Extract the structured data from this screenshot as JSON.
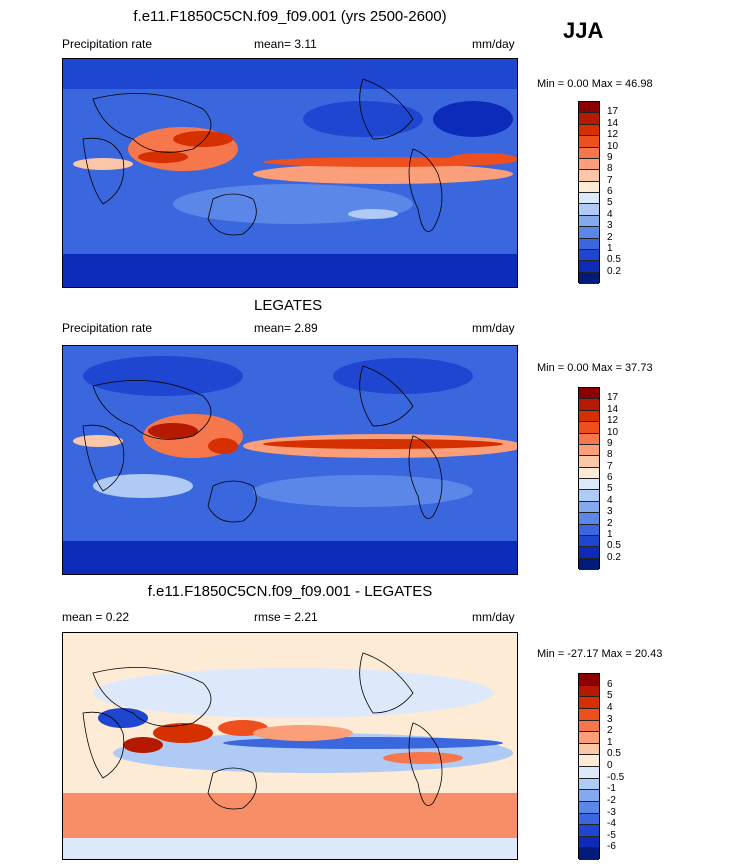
{
  "season": "JJA",
  "panels": [
    {
      "title": "f.e11.F1850C5CN.f09_f09.001 (yrs 2500-2600)",
      "left_label": "Precipitation rate",
      "center_label": "mean=   3.11",
      "units": "mm/day",
      "minmax": "Min =   0.00 Max =  46.98",
      "levels": [
        "17",
        "14",
        "12",
        "10",
        "9",
        "8",
        "7",
        "6",
        "5",
        "4",
        "3",
        "2",
        "1",
        "0.5",
        "0.2"
      ],
      "colors": [
        "#8b0000",
        "#b51a00",
        "#d62f00",
        "#ee4f1e",
        "#f6774c",
        "#fa9f7a",
        "#fcc6a8",
        "#fdebd6",
        "#dce9fb",
        "#aecaf5",
        "#85a9ef",
        "#5b87e8",
        "#3a66de",
        "#1e46d0",
        "#0c2bb8",
        "#021a7a"
      ]
    },
    {
      "title": "LEGATES",
      "left_label": "Precipitation rate",
      "center_label": "mean=   2.89",
      "units": "mm/day",
      "minmax": "Min =   0.00 Max =  37.73",
      "levels": [
        "17",
        "14",
        "12",
        "10",
        "9",
        "8",
        "7",
        "6",
        "5",
        "4",
        "3",
        "2",
        "1",
        "0.5",
        "0.2"
      ],
      "colors": [
        "#8b0000",
        "#b51a00",
        "#d62f00",
        "#ee4f1e",
        "#f6774c",
        "#fa9f7a",
        "#fcc6a8",
        "#fdebd6",
        "#dce9fb",
        "#aecaf5",
        "#85a9ef",
        "#5b87e8",
        "#3a66de",
        "#1e46d0",
        "#0c2bb8",
        "#021a7a"
      ]
    },
    {
      "title": "f.e11.F1850C5CN.f09_f09.001 - LEGATES",
      "left_label": "mean =   0.22",
      "center_label": "rmse =   2.21",
      "units": "mm/day",
      "minmax": "Min = -27.17 Max =  20.43",
      "levels": [
        "6",
        "5",
        "4",
        "3",
        "2",
        "1",
        "0.5",
        "0",
        "-0.5",
        "-1",
        "-2",
        "-3",
        "-4",
        "-5",
        "-6"
      ],
      "colors": [
        "#8b0000",
        "#b51a00",
        "#d62f00",
        "#ee4f1e",
        "#f6774c",
        "#fa9f7a",
        "#fcc6a8",
        "#fdebd6",
        "#dde9fb",
        "#aecaf5",
        "#85a9ef",
        "#5b87e8",
        "#3a66de",
        "#1e46d0",
        "#0c2bb8",
        "#021a7a"
      ]
    }
  ],
  "chart_data": [
    {
      "type": "heatmap",
      "title": "f.e11.F1850C5CN.f09_f09.001 (yrs 2500-2600)",
      "variable": "Precipitation rate",
      "units": "mm/day",
      "mean": 3.11,
      "min": 0.0,
      "max": 46.98,
      "contour_levels": [
        0.2,
        0.5,
        1,
        2,
        3,
        4,
        5,
        6,
        7,
        8,
        9,
        10,
        12,
        14,
        17
      ]
    },
    {
      "type": "heatmap",
      "title": "LEGATES",
      "variable": "Precipitation rate",
      "units": "mm/day",
      "mean": 2.89,
      "min": 0.0,
      "max": 37.73,
      "contour_levels": [
        0.2,
        0.5,
        1,
        2,
        3,
        4,
        5,
        6,
        7,
        8,
        9,
        10,
        12,
        14,
        17
      ]
    },
    {
      "type": "heatmap",
      "title": "f.e11.F1850C5CN.f09_f09.001 - LEGATES",
      "units": "mm/day",
      "mean": 0.22,
      "rmse": 2.21,
      "min": -27.17,
      "max": 20.43,
      "contour_levels": [
        -6,
        -5,
        -4,
        -3,
        -2,
        -1,
        -0.5,
        0,
        0.5,
        1,
        2,
        3,
        4,
        5,
        6
      ]
    }
  ]
}
